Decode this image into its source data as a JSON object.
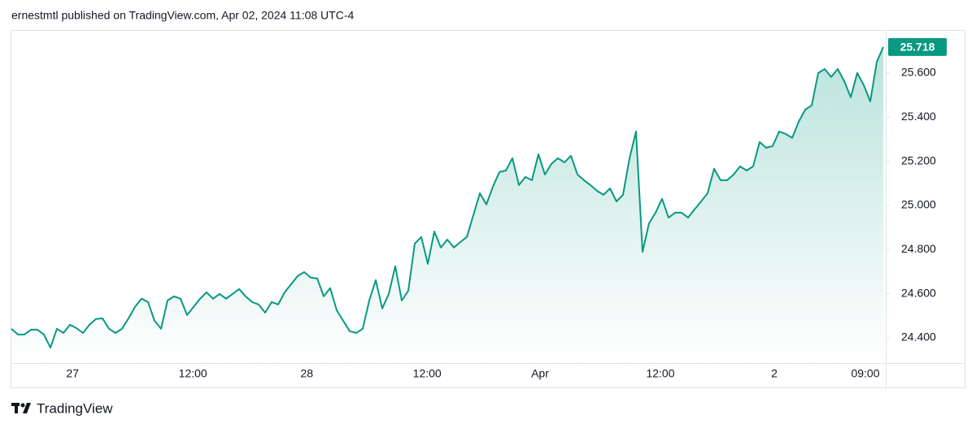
{
  "chart_data": {
    "type": "area",
    "title": "ernestmtl published on TradingView.com, Apr 02, 2024 11:08 UTC-4",
    "footer": "TradingView",
    "color": "#089981",
    "grid": false,
    "xlim": [
      0,
      134
    ],
    "xticks": [
      {
        "value": 9.4,
        "label": "27"
      },
      {
        "value": 27.9,
        "label": "12:00"
      },
      {
        "value": 45.4,
        "label": "28"
      },
      {
        "value": 63.9,
        "label": "12:00"
      },
      {
        "value": 81.25,
        "label": "Apr"
      },
      {
        "value": 99.75,
        "label": "12:00"
      },
      {
        "value": 117.25,
        "label": "2"
      },
      {
        "value": 131.25,
        "label": "09:00"
      }
    ],
    "ylim": [
      24.282,
      25.791
    ],
    "yticks": [
      {
        "value": 24.4,
        "label": "24.400"
      },
      {
        "value": 24.6,
        "label": "24.600"
      },
      {
        "value": 24.8,
        "label": "24.800"
      },
      {
        "value": 25.0,
        "label": "25.000"
      },
      {
        "value": 25.2,
        "label": "25.200"
      },
      {
        "value": 25.4,
        "label": "25.400"
      },
      {
        "value": 25.6,
        "label": "25.600"
      }
    ],
    "values": [
      24.441,
      24.415,
      24.415,
      24.437,
      24.437,
      24.415,
      24.356,
      24.441,
      24.422,
      24.459,
      24.444,
      24.422,
      24.459,
      24.485,
      24.488,
      24.441,
      24.422,
      24.441,
      24.488,
      24.54,
      24.577,
      24.562,
      24.477,
      24.441,
      24.569,
      24.588,
      24.577,
      24.503,
      24.54,
      24.577,
      24.606,
      24.577,
      24.599,
      24.577,
      24.599,
      24.621,
      24.588,
      24.562,
      24.551,
      24.514,
      24.562,
      24.551,
      24.606,
      24.643,
      24.68,
      24.698,
      24.673,
      24.669,
      24.588,
      24.625,
      24.525,
      24.477,
      24.43,
      24.422,
      24.441,
      24.569,
      24.661,
      24.533,
      24.599,
      24.724,
      24.569,
      24.614,
      24.827,
      24.857,
      24.735,
      24.882,
      24.809,
      24.845,
      24.809,
      24.834,
      24.857,
      24.956,
      25.055,
      25.004,
      25.085,
      25.151,
      25.158,
      25.214,
      25.092,
      25.129,
      25.114,
      25.232,
      25.14,
      25.188,
      25.214,
      25.195,
      25.225,
      25.14,
      25.114,
      25.092,
      25.066,
      25.048,
      25.077,
      25.018,
      25.048,
      25.214,
      25.335,
      24.79,
      24.919,
      24.967,
      25.03,
      24.945,
      24.967,
      24.967,
      24.945,
      24.982,
      25.018,
      25.055,
      25.166,
      25.114,
      25.114,
      25.14,
      25.177,
      25.158,
      25.177,
      25.287,
      25.261,
      25.269,
      25.335,
      25.324,
      25.306,
      25.379,
      25.434,
      25.453,
      25.6,
      25.618,
      25.582,
      25.618,
      25.563,
      25.49,
      25.6,
      25.545,
      25.471,
      25.65,
      25.718
    ]
  }
}
